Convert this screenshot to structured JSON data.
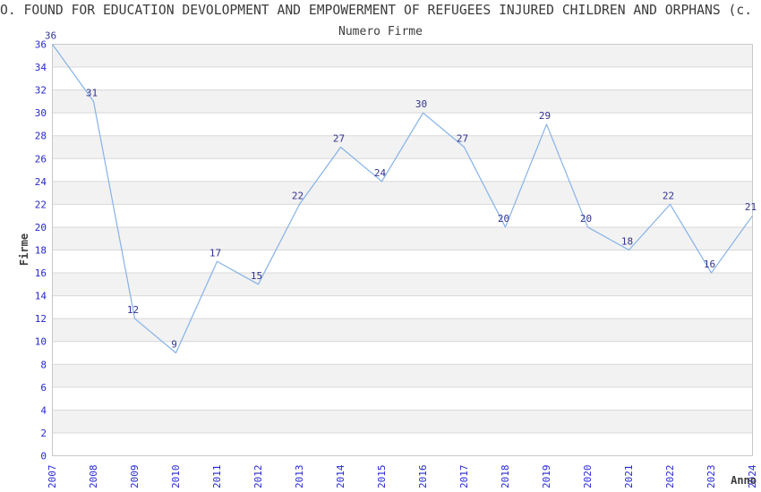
{
  "chart_data": {
    "type": "line",
    "title": "O. FOUND FOR EDUCATION DEVOLOPMENT AND EMPOWERMENT OF REFUGEES INJURED CHILDREN AND ORPHANS (c.",
    "subtitle": "Numero Firme",
    "xlabel": "Anno",
    "ylabel": "Firme",
    "categories": [
      "2007",
      "2008",
      "2009",
      "2010",
      "2011",
      "2012",
      "2013",
      "2014",
      "2015",
      "2016",
      "2017",
      "2018",
      "2019",
      "2020",
      "2021",
      "2022",
      "2023",
      "2024"
    ],
    "series": [
      {
        "name": "Numero Firme",
        "values": [
          36,
          31,
          12,
          9,
          17,
          15,
          22,
          27,
          24,
          30,
          27,
          20,
          29,
          20,
          18,
          22,
          16,
          21
        ]
      }
    ],
    "ylim": [
      0,
      36
    ],
    "ytick_step": 2,
    "grid": "horizontal-bands-alternating",
    "legend_position": "none",
    "data_labels": true,
    "colors": {
      "line": "#85b2e8",
      "tick_label": "#2626d2",
      "data_label": "#333390",
      "band_fill": "#f2f2f2",
      "grid_line": "#d8d8d8",
      "plot_border": "#c8c8c8",
      "text": "#3c3c3c",
      "background": "#ffffff"
    }
  }
}
